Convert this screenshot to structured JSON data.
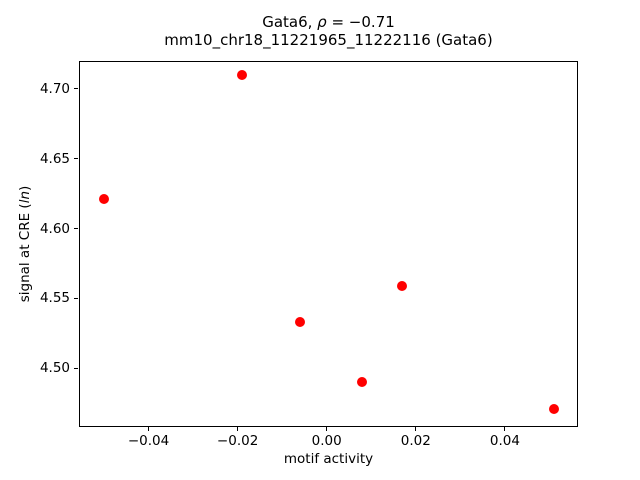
{
  "header": {
    "title_gene": "Gata6, ",
    "title_rho_symbol": "ρ",
    "title_correlation": " = −0.71",
    "subtitle": "mm10_chr18_11221965_11222116 (Gata6)"
  },
  "axes": {
    "xlabel": "motif activity",
    "ylabel_prefix": "signal at CRE (",
    "ylabel_italic": "ln",
    "ylabel_suffix": ")"
  },
  "chart_data": {
    "type": "scatter",
    "title": "Gata6, ρ = −0.71",
    "subtitle": "mm10_chr18_11221965_11222116 (Gata6)",
    "xlabel": "motif activity",
    "ylabel": "signal at CRE (ln)",
    "points": [
      {
        "x": -0.05,
        "y": 4.621
      },
      {
        "x": -0.019,
        "y": 4.71
      },
      {
        "x": -0.006,
        "y": 4.533
      },
      {
        "x": 0.008,
        "y": 4.49
      },
      {
        "x": 0.017,
        "y": 4.559
      },
      {
        "x": 0.051,
        "y": 4.471
      }
    ],
    "xticks": [
      -0.04,
      -0.02,
      0.0,
      0.02,
      0.04
    ],
    "yticks": [
      4.5,
      4.55,
      4.6,
      4.65,
      4.7
    ],
    "xlim": [
      -0.0556,
      0.0564
    ],
    "ylim": [
      4.458,
      4.72
    ],
    "grid": false,
    "legend_position": "none",
    "marker_shape": "circle",
    "marker_color": "#ff0000",
    "marker_diameter_px": 10
  },
  "colors": {
    "background": "#ffffff",
    "text": "#000000",
    "spine": "#000000",
    "marker": "#ff0000"
  }
}
